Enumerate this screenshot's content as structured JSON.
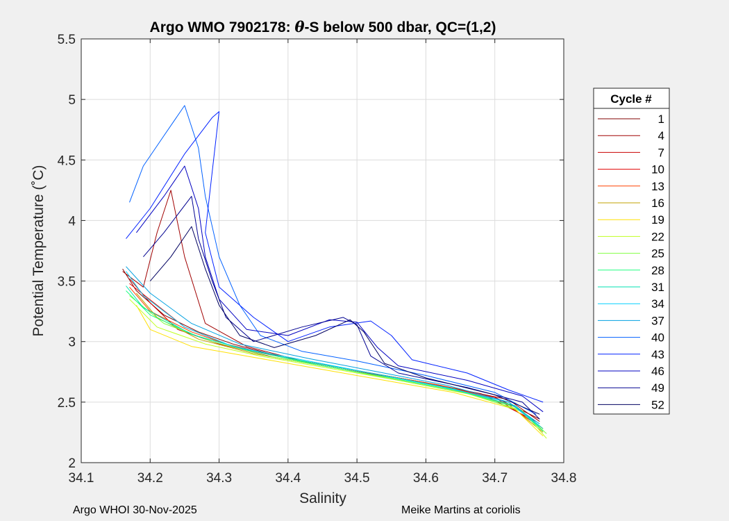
{
  "chart_data": {
    "type": "line",
    "title_prefix": "Argo WMO 7902178: ",
    "title_symbol": "θ",
    "title_suffix": "-S below 500 dbar,  QC=(1,2)",
    "xlabel": "Salinity",
    "ylabel": "Potential Temperature (˚C)",
    "xlim": [
      34.1,
      34.8
    ],
    "ylim": [
      2,
      5.5
    ],
    "xticks": [
      34.1,
      34.2,
      34.3,
      34.4,
      34.5,
      34.6,
      34.7,
      34.8
    ],
    "yticks": [
      2,
      2.5,
      3,
      3.5,
      4,
      4.5,
      5,
      5.5
    ],
    "xtick_labels": [
      "34.1",
      "34.2",
      "34.3",
      "34.4",
      "34.5",
      "34.6",
      "34.7",
      "34.8"
    ],
    "ytick_labels": [
      "2",
      "2.5",
      "3",
      "3.5",
      "4",
      "4.5",
      "5",
      "5.5"
    ],
    "grid": true,
    "legend_title": "Cycle #",
    "legend_position": "right",
    "series": [
      {
        "name": "1",
        "color": "#800000",
        "points": [
          [
            34.16,
            3.6
          ],
          [
            34.18,
            3.42
          ],
          [
            34.22,
            3.22
          ],
          [
            34.27,
            3.08
          ],
          [
            34.32,
            2.98
          ],
          [
            34.4,
            2.86
          ],
          [
            34.5,
            2.76
          ],
          [
            34.6,
            2.66
          ],
          [
            34.7,
            2.54
          ],
          [
            34.765,
            2.36
          ]
        ]
      },
      {
        "name": "4",
        "color": "#a00000",
        "points": [
          [
            34.16,
            3.58
          ],
          [
            34.19,
            3.45
          ],
          [
            34.21,
            3.9
          ],
          [
            34.23,
            4.25
          ],
          [
            34.25,
            3.7
          ],
          [
            34.28,
            3.15
          ],
          [
            34.34,
            2.96
          ],
          [
            34.42,
            2.84
          ],
          [
            34.52,
            2.74
          ],
          [
            34.62,
            2.64
          ],
          [
            34.72,
            2.52
          ],
          [
            34.765,
            2.34
          ]
        ]
      },
      {
        "name": "7",
        "color": "#c80000",
        "points": [
          [
            34.17,
            3.52
          ],
          [
            34.2,
            3.32
          ],
          [
            34.24,
            3.1
          ],
          [
            34.3,
            2.98
          ],
          [
            34.38,
            2.87
          ],
          [
            34.48,
            2.77
          ],
          [
            34.58,
            2.68
          ],
          [
            34.68,
            2.57
          ],
          [
            34.76,
            2.34
          ]
        ]
      },
      {
        "name": "10",
        "color": "#e00000",
        "points": [
          [
            34.17,
            3.48
          ],
          [
            34.21,
            3.3
          ],
          [
            34.25,
            3.12
          ],
          [
            34.31,
            2.98
          ],
          [
            34.4,
            2.86
          ],
          [
            34.5,
            2.76
          ],
          [
            34.6,
            2.66
          ],
          [
            34.7,
            2.54
          ],
          [
            34.765,
            2.3
          ]
        ]
      },
      {
        "name": "13",
        "color": "#ff4000",
        "points": [
          [
            34.17,
            3.45
          ],
          [
            34.2,
            3.25
          ],
          [
            34.26,
            3.08
          ],
          [
            34.33,
            2.94
          ],
          [
            34.42,
            2.84
          ],
          [
            34.52,
            2.74
          ],
          [
            34.62,
            2.64
          ],
          [
            34.72,
            2.5
          ],
          [
            34.77,
            2.28
          ]
        ]
      },
      {
        "name": "16",
        "color": "#c0a000",
        "points": [
          [
            34.18,
            3.4
          ],
          [
            34.21,
            3.2
          ],
          [
            34.27,
            3.02
          ],
          [
            34.35,
            2.9
          ],
          [
            34.44,
            2.81
          ],
          [
            34.54,
            2.71
          ],
          [
            34.64,
            2.6
          ],
          [
            34.72,
            2.48
          ],
          [
            34.77,
            2.25
          ]
        ]
      },
      {
        "name": "19",
        "color": "#ffe000",
        "points": [
          [
            34.18,
            3.3
          ],
          [
            34.2,
            3.1
          ],
          [
            34.26,
            2.96
          ],
          [
            34.34,
            2.88
          ],
          [
            34.44,
            2.78
          ],
          [
            34.54,
            2.68
          ],
          [
            34.64,
            2.58
          ],
          [
            34.73,
            2.44
          ],
          [
            34.77,
            2.22
          ]
        ]
      },
      {
        "name": "22",
        "color": "#c0ff20",
        "points": [
          [
            34.17,
            3.35
          ],
          [
            34.21,
            3.12
          ],
          [
            34.28,
            2.98
          ],
          [
            34.36,
            2.88
          ],
          [
            34.46,
            2.78
          ],
          [
            34.56,
            2.68
          ],
          [
            34.66,
            2.57
          ],
          [
            34.74,
            2.43
          ],
          [
            34.775,
            2.2
          ]
        ]
      },
      {
        "name": "25",
        "color": "#80ff40",
        "points": [
          [
            34.17,
            3.38
          ],
          [
            34.22,
            3.15
          ],
          [
            34.29,
            3.0
          ],
          [
            34.37,
            2.88
          ],
          [
            34.47,
            2.78
          ],
          [
            34.57,
            2.67
          ],
          [
            34.67,
            2.56
          ],
          [
            34.74,
            2.42
          ],
          [
            34.775,
            2.24
          ]
        ]
      },
      {
        "name": "28",
        "color": "#20ff80",
        "points": [
          [
            34.165,
            3.42
          ],
          [
            34.2,
            3.22
          ],
          [
            34.27,
            3.04
          ],
          [
            34.35,
            2.92
          ],
          [
            34.45,
            2.8
          ],
          [
            34.55,
            2.7
          ],
          [
            34.65,
            2.59
          ],
          [
            34.73,
            2.46
          ],
          [
            34.77,
            2.26
          ]
        ]
      },
      {
        "name": "31",
        "color": "#00e0b0",
        "points": [
          [
            34.165,
            3.46
          ],
          [
            34.19,
            3.28
          ],
          [
            34.26,
            3.06
          ],
          [
            34.34,
            2.93
          ],
          [
            34.44,
            2.82
          ],
          [
            34.54,
            2.72
          ],
          [
            34.64,
            2.61
          ],
          [
            34.73,
            2.47
          ],
          [
            34.77,
            2.28
          ]
        ]
      },
      {
        "name": "34",
        "color": "#00d0ff",
        "points": [
          [
            34.165,
            3.58
          ],
          [
            34.19,
            3.38
          ],
          [
            34.25,
            3.12
          ],
          [
            34.32,
            2.96
          ],
          [
            34.42,
            2.85
          ],
          [
            34.52,
            2.74
          ],
          [
            34.62,
            2.63
          ],
          [
            34.72,
            2.5
          ],
          [
            34.765,
            2.3
          ]
        ]
      },
      {
        "name": "37",
        "color": "#00a0e0",
        "points": [
          [
            34.165,
            3.62
          ],
          [
            34.2,
            3.4
          ],
          [
            34.26,
            3.15
          ],
          [
            34.33,
            2.98
          ],
          [
            34.43,
            2.86
          ],
          [
            34.53,
            2.75
          ],
          [
            34.63,
            2.64
          ],
          [
            34.72,
            2.5
          ],
          [
            34.765,
            2.32
          ]
        ]
      },
      {
        "name": "40",
        "color": "#0060ff",
        "points": [
          [
            34.17,
            4.15
          ],
          [
            34.19,
            4.45
          ],
          [
            34.22,
            4.7
          ],
          [
            34.25,
            4.95
          ],
          [
            34.27,
            4.6
          ],
          [
            34.28,
            4.2
          ],
          [
            34.3,
            3.7
          ],
          [
            34.33,
            3.3
          ],
          [
            34.36,
            3.05
          ],
          [
            34.42,
            2.92
          ],
          [
            34.5,
            2.84
          ],
          [
            34.6,
            2.72
          ],
          [
            34.7,
            2.58
          ],
          [
            34.76,
            2.4
          ]
        ]
      },
      {
        "name": "43",
        "color": "#0020ff",
        "points": [
          [
            34.165,
            3.85
          ],
          [
            34.2,
            4.1
          ],
          [
            34.25,
            4.55
          ],
          [
            34.29,
            4.85
          ],
          [
            34.3,
            4.9
          ],
          [
            34.29,
            4.4
          ],
          [
            34.28,
            3.9
          ],
          [
            34.3,
            3.45
          ],
          [
            34.35,
            3.2
          ],
          [
            34.4,
            3.0
          ],
          [
            34.46,
            3.12
          ],
          [
            34.52,
            3.17
          ],
          [
            34.55,
            3.05
          ],
          [
            34.58,
            2.85
          ],
          [
            34.66,
            2.74
          ],
          [
            34.72,
            2.6
          ],
          [
            34.77,
            2.5
          ]
        ]
      },
      {
        "name": "46",
        "color": "#0000c0",
        "points": [
          [
            34.18,
            3.9
          ],
          [
            34.22,
            4.2
          ],
          [
            34.25,
            4.45
          ],
          [
            34.27,
            4.1
          ],
          [
            34.28,
            3.7
          ],
          [
            34.3,
            3.35
          ],
          [
            34.34,
            3.1
          ],
          [
            34.4,
            3.05
          ],
          [
            34.46,
            3.18
          ],
          [
            34.5,
            3.16
          ],
          [
            34.53,
            2.95
          ],
          [
            34.56,
            2.8
          ],
          [
            34.66,
            2.68
          ],
          [
            34.74,
            2.55
          ],
          [
            34.77,
            2.42
          ]
        ]
      },
      {
        "name": "49",
        "color": "#000090",
        "points": [
          [
            34.19,
            3.7
          ],
          [
            34.22,
            3.9
          ],
          [
            34.26,
            4.2
          ],
          [
            34.27,
            3.85
          ],
          [
            34.29,
            3.5
          ],
          [
            34.31,
            3.2
          ],
          [
            34.35,
            3.0
          ],
          [
            34.42,
            3.12
          ],
          [
            34.48,
            3.2
          ],
          [
            34.5,
            3.14
          ],
          [
            34.52,
            2.88
          ],
          [
            34.56,
            2.74
          ],
          [
            34.66,
            2.62
          ],
          [
            34.74,
            2.5
          ],
          [
            34.765,
            2.36
          ]
        ]
      },
      {
        "name": "52",
        "color": "#000060",
        "points": [
          [
            34.2,
            3.5
          ],
          [
            34.23,
            3.7
          ],
          [
            34.26,
            3.95
          ],
          [
            34.28,
            3.6
          ],
          [
            34.3,
            3.3
          ],
          [
            34.33,
            3.05
          ],
          [
            34.38,
            2.95
          ],
          [
            34.44,
            3.05
          ],
          [
            34.49,
            3.18
          ],
          [
            34.51,
            3.08
          ],
          [
            34.54,
            2.82
          ],
          [
            34.6,
            2.7
          ],
          [
            34.7,
            2.56
          ],
          [
            34.765,
            2.4
          ]
        ]
      }
    ]
  },
  "footer": {
    "left": "Argo WHOI 30-Nov-2025",
    "right": "Meike Martins at coriolis"
  }
}
